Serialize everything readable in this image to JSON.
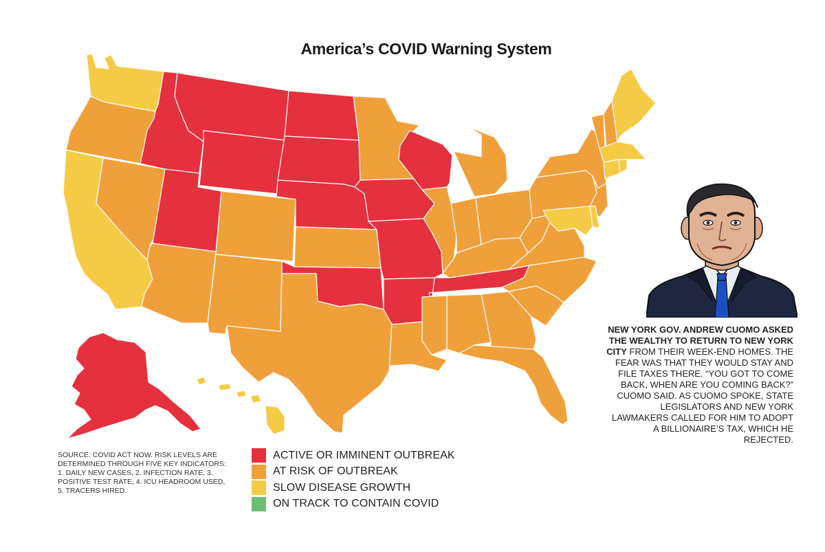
{
  "title": "America’s COVID Warning System",
  "colors": {
    "active_outbreak": "#e5313e",
    "at_risk": "#f0a03a",
    "slow_growth": "#f5cb45",
    "on_track": "#6fbf73"
  },
  "legend": [
    {
      "label": "ACTIVE OR IMMINENT OUTBREAK",
      "color": "#e5313e"
    },
    {
      "label": "AT RISK OF OUTBREAK",
      "color": "#f0a03a"
    },
    {
      "label": "SLOW DISEASE GROWTH",
      "color": "#f5cb45"
    },
    {
      "label": "ON TRACK TO CONTAIN COVID",
      "color": "#6fbf73"
    }
  ],
  "source_note": "SOURCE: COVID ACT NOW. RISK LEVELS ARE DETERMINED THROUGH FIVE KEY INDICATORS: 1. DAILY NEW CASES, 2. INFECTION RATE, 3. POSITIVE TEST RATE, 4. ICU HEADROOM USED, 5. TRACERS HIRED.",
  "caption": {
    "bold": "NEW YORK GOV. ANDREW CUOMO ASKED THE WEALTHY TO RETURN TO NEW YORK CITY",
    "body": " FROM THEIR WEEK-END HOMES. THE FEAR WAS THAT THEY WOULD STAY AND FILE TAXES THERE. “YOU GOT TO COME BACK, WHEN ARE YOU COMING BACK?” CUOMO SAID. AS CUOMO SPOKE, STATE LEGISLATORS AND NEW YORK LAWMAKERS CALLED FOR HIM TO ADOPT A BILLIONAIRE’S TAX, WHICH HE REJECTED."
  },
  "states": {
    "active_outbreak": [
      "Alaska",
      "Idaho",
      "Montana",
      "Wyoming",
      "Utah",
      "North Dakota",
      "South Dakota",
      "Nebraska",
      "Iowa",
      "Wisconsin",
      "Missouri",
      "Oklahoma",
      "Arkansas",
      "Tennessee"
    ],
    "at_risk": [
      "Oregon",
      "Nevada",
      "Arizona",
      "New Mexico",
      "Colorado",
      "Kansas",
      "Texas",
      "Minnesota",
      "Illinois",
      "Michigan",
      "Indiana",
      "Ohio",
      "Kentucky",
      "Louisiana",
      "Mississippi",
      "Alabama",
      "Georgia",
      "Florida",
      "South Carolina",
      "North Carolina",
      "Virginia",
      "West Virginia",
      "Pennsylvania",
      "New York",
      "New Jersey",
      "Vermont",
      "New Hampshire"
    ],
    "slow_growth": [
      "Washington",
      "California",
      "Hawaii",
      "Maine",
      "Massachusetts",
      "Connecticut",
      "Rhode Island",
      "Maryland",
      "Delaware"
    ]
  }
}
